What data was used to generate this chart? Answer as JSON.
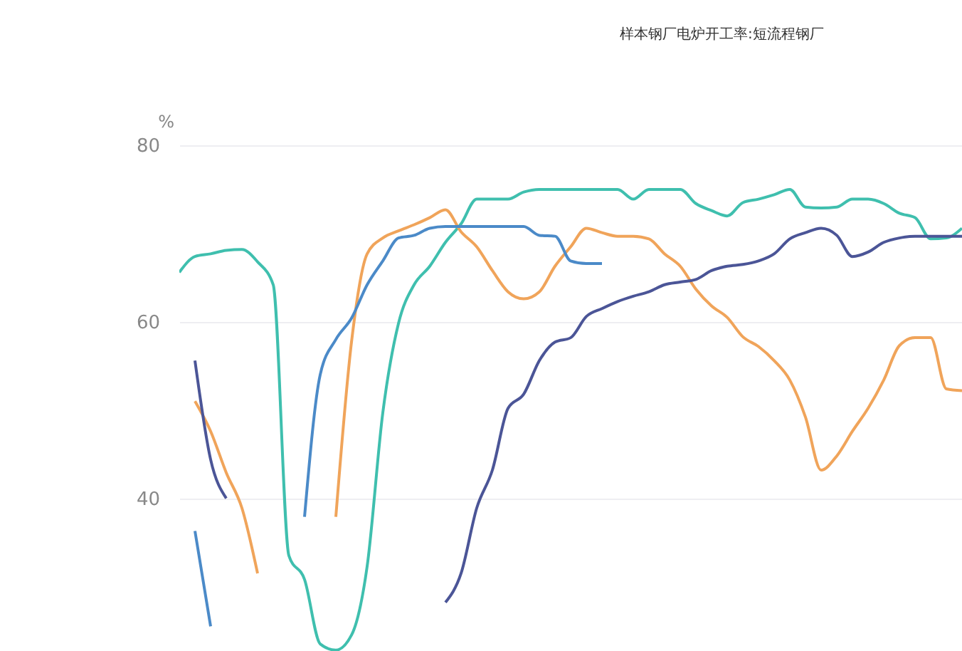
{
  "chart_data": {
    "type": "line",
    "title": "样本钢厂电炉开工率:短流程钢厂",
    "ylabel": "%",
    "categories": [
      null,
      null,
      null,
      null,
      null,
      null,
      null,
      null,
      null,
      null,
      null,
      null,
      null,
      null,
      null,
      null,
      null,
      null,
      null,
      null,
      null,
      null,
      null,
      null,
      null,
      null,
      null,
      null,
      null,
      null,
      null,
      null,
      null,
      null,
      null,
      null,
      null,
      null,
      null,
      null,
      null,
      null,
      null,
      null,
      null,
      null,
      null,
      null,
      null,
      null,
      null
    ],
    "series": [
      {
        "color": "#3fbfae",
        "values": [
          65.6,
          67.4,
          67.7,
          68.1,
          68.2,
          66.8,
          64.2,
          33.5,
          30.8,
          23.5,
          22.8,
          24.5,
          32.3,
          49.7,
          59.8,
          64.2,
          66.3,
          69,
          71.1,
          73.9,
          73.9,
          73.9,
          74.7,
          75,
          75,
          75,
          75,
          75,
          75,
          73.9,
          75,
          75,
          75,
          73.4,
          72.6,
          72,
          73.5,
          73.9,
          74.4,
          75,
          73,
          72.9,
          73,
          73.9,
          73.9,
          73.4,
          72.3,
          71.8,
          69.4,
          69.5,
          70.6
        ]
      },
      {
        "color": "#f0a45a",
        "values": [
          null,
          51,
          47.6,
          42.9,
          38.9,
          31.5,
          null,
          null,
          null,
          null,
          37.9,
          57.7,
          67.7,
          69.5,
          70.3,
          71,
          71.8,
          72.7,
          70.2,
          68.5,
          65.8,
          63.4,
          62.6,
          63.4,
          66.3,
          68.5,
          70.6,
          70.1,
          69.7,
          69.7,
          69.4,
          67.7,
          66.3,
          63.7,
          61.8,
          60.5,
          58.3,
          57.2,
          55.6,
          53.4,
          49.2,
          43.2,
          44.8,
          47.6,
          50.2,
          53.4,
          57.3,
          58.2,
          58.2,
          52.4,
          52.2
        ]
      },
      {
        "color": "#4b8ac8",
        "values": [
          null,
          36.3,
          25.5,
          null,
          null,
          null,
          null,
          null,
          37.9,
          54,
          58,
          60.4,
          64.2,
          66.9,
          69.5,
          69.8,
          70.6,
          70.8,
          70.8,
          70.8,
          70.8,
          70.8,
          70.8,
          69.8,
          69.7,
          66.9,
          66.6,
          66.6,
          null,
          null,
          null,
          null,
          null,
          null,
          null,
          null,
          null,
          null,
          null,
          null,
          null,
          null,
          null,
          null,
          null,
          null,
          null,
          null,
          null,
          null,
          null
        ]
      },
      {
        "color": "#4b5597",
        "values": [
          null,
          55.6,
          44.4,
          40,
          null,
          null,
          null,
          null,
          null,
          null,
          null,
          null,
          null,
          null,
          null,
          null,
          null,
          28.2,
          31.5,
          38.9,
          43.2,
          50.2,
          51.8,
          55.6,
          57.7,
          58.2,
          60.6,
          61.5,
          62.3,
          62.9,
          63.4,
          64.2,
          64.5,
          64.8,
          65.8,
          66.3,
          66.5,
          66.9,
          67.7,
          69.4,
          70.1,
          70.6,
          69.8,
          67.4,
          67.9,
          69,
          69.5,
          69.7,
          69.7,
          69.7,
          69.7
        ]
      }
    ],
    "ylim": [
      22.7,
      80
    ],
    "yticks": [
      40,
      60,
      80
    ],
    "grid": "y",
    "tick_labels": "y",
    "legend": false,
    "marker": "none",
    "line_style": "solid"
  }
}
